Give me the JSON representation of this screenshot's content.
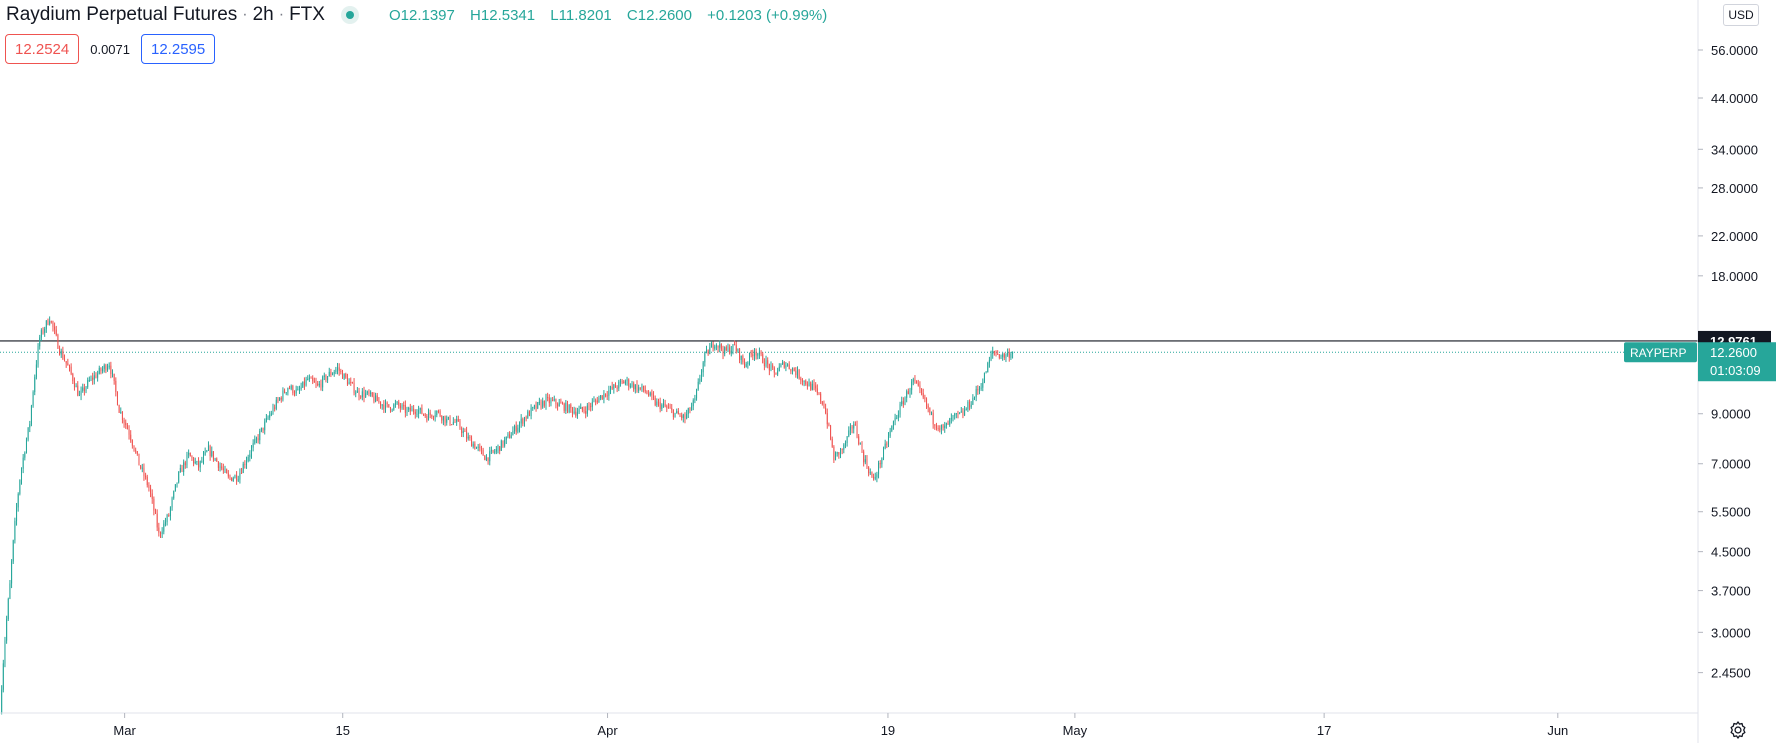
{
  "header": {
    "symbol_name": "Raydium Perpetual Futures",
    "interval": "2h",
    "exchange": "FTX",
    "ohlc": {
      "o_label": "O",
      "o_value": "12.1397",
      "h_label": "H",
      "h_value": "12.5341",
      "l_label": "L",
      "l_value": "11.8201",
      "c_label": "C",
      "c_value": "12.2600",
      "change": "+0.1203 (+0.99%)"
    }
  },
  "trade_prices": {
    "sell": "12.2524",
    "spread": "0.0071",
    "buy": "12.2595"
  },
  "price_scale": {
    "currency": "USD"
  },
  "colors": {
    "up": "#26a69a",
    "down": "#ef5350",
    "horizontal_line": "#131722",
    "last_price_line": "#26a69a",
    "buy": "#2962ff",
    "axis_text": "#131722"
  },
  "icons": {
    "live_status": "status-dot-icon",
    "settings": "gear-icon"
  },
  "chart_data": {
    "type": "candlestick",
    "scale": "log",
    "x_range": [
      "2021-02-21",
      "2021-06-10"
    ],
    "y_range": [
      2.0,
      72.0
    ],
    "grid": false,
    "x_ticks": [
      {
        "date": "2021-03-01",
        "label": "Mar"
      },
      {
        "date": "2021-03-15",
        "label": "15"
      },
      {
        "date": "2021-04-01",
        "label": "Apr"
      },
      {
        "date": "2021-04-19",
        "label": "19"
      },
      {
        "date": "2021-05-01",
        "label": "May"
      },
      {
        "date": "2021-05-17",
        "label": "17"
      },
      {
        "date": "2021-06-01",
        "label": "Jun"
      }
    ],
    "y_ticks": [
      {
        "value": 56.0,
        "label": "56.0000"
      },
      {
        "value": 44.0,
        "label": "44.0000"
      },
      {
        "value": 34.0,
        "label": "34.0000"
      },
      {
        "value": 28.0,
        "label": "28.0000"
      },
      {
        "value": 22.0,
        "label": "22.0000"
      },
      {
        "value": 18.0,
        "label": "18.0000"
      },
      {
        "value": 9.0,
        "label": "9.0000"
      },
      {
        "value": 7.0,
        "label": "7.0000"
      },
      {
        "value": 5.5,
        "label": "5.5000"
      },
      {
        "value": 4.5,
        "label": "4.5000"
      },
      {
        "value": 3.7,
        "label": "3.7000"
      },
      {
        "value": 3.0,
        "label": "3.0000"
      },
      {
        "value": 2.45,
        "label": "2.4500"
      }
    ],
    "horizontal_line": {
      "value": 12.9761,
      "label": "12.9761"
    },
    "last_price": {
      "symbol": "RAYPERP",
      "value": 12.26,
      "label": "12.2600",
      "countdown": "01:03:09"
    },
    "series": [
      {
        "date_start": "2021-02-21",
        "date_end": "2021-04-27",
        "close": [
          2.0,
          3.8,
          6.5,
          8.6,
          13.2,
          14.6,
          12.4,
          11.2,
          9.8,
          10.6,
          11.1,
          11.6,
          9.2,
          8.2,
          7.0,
          6.2,
          4.9,
          5.4,
          6.6,
          7.3,
          6.9,
          7.5,
          7.0,
          6.5,
          6.6,
          7.3,
          8.0,
          8.8,
          9.6,
          10.3,
          10.0,
          10.7,
          10.3,
          10.9,
          11.3,
          10.6,
          10.0,
          9.9,
          9.6,
          9.3,
          9.4,
          9.1,
          9.2,
          8.9,
          9.1,
          8.7,
          8.6,
          8.0,
          7.6,
          7.2,
          7.5,
          7.9,
          8.4,
          8.9,
          9.3,
          9.6,
          9.5,
          9.3,
          9.1,
          9.2,
          9.6,
          10.0,
          10.3,
          10.6,
          10.3,
          10.1,
          9.5,
          9.3,
          9.0,
          8.8,
          9.6,
          12.0,
          12.9,
          12.3,
          12.6,
          11.5,
          12.4,
          11.7,
          11.0,
          11.6,
          11.2,
          10.6,
          10.2,
          9.4,
          7.2,
          7.6,
          8.6,
          7.2,
          6.4,
          7.4,
          8.6,
          9.6,
          10.6,
          9.7,
          8.7,
          8.3,
          8.8,
          9.0,
          9.7,
          10.6,
          12.3,
          12.0,
          12.26
        ]
      }
    ]
  }
}
